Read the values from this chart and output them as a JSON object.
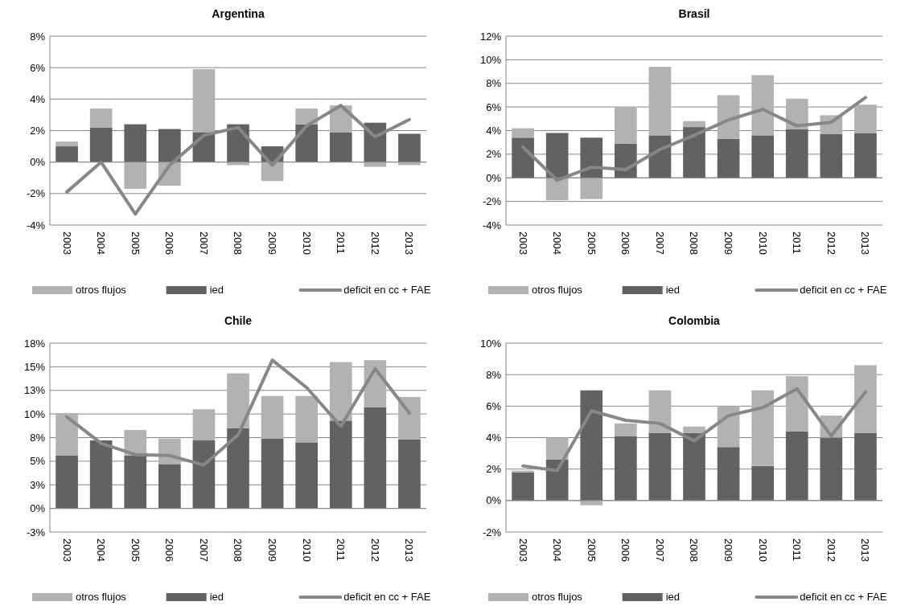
{
  "chart_data": [
    {
      "type": "bar",
      "stacked": true,
      "title": "Argentina",
      "categories": [
        "2003",
        "2004",
        "2005",
        "2006",
        "2007",
        "2008",
        "2009",
        "2010",
        "2011",
        "2012",
        "2013"
      ],
      "ylim": [
        -4,
        8
      ],
      "yticks": [
        {
          "value": -4,
          "label": "-4%"
        },
        {
          "value": -2,
          "label": "-2%"
        },
        {
          "value": 0,
          "label": "0%"
        },
        {
          "value": 2,
          "label": "2%"
        },
        {
          "value": 4,
          "label": "4%"
        },
        {
          "value": 6,
          "label": "6%"
        },
        {
          "value": 8,
          "label": "8%"
        }
      ],
      "grid": "y",
      "legend": "bottom",
      "series": [
        {
          "name": "ied",
          "color": "#626262",
          "values": [
            1.0,
            2.2,
            2.4,
            2.1,
            1.9,
            2.4,
            1.0,
            2.4,
            1.9,
            2.5,
            1.8
          ]
        },
        {
          "name": "otros flujos",
          "color": "#b2b2b2",
          "values": [
            0.3,
            1.2,
            -1.7,
            -1.5,
            4.0,
            -0.2,
            -1.2,
            1.0,
            1.7,
            -0.3,
            -0.2
          ]
        },
        {
          "name": "deficit en cc + FAE",
          "type": "line",
          "color": "#878787",
          "values": [
            -1.9,
            0.0,
            -3.3,
            -0.2,
            1.7,
            2.2,
            -0.2,
            2.3,
            3.6,
            1.6,
            2.7
          ]
        }
      ]
    },
    {
      "type": "bar",
      "stacked": true,
      "title": "Brasil",
      "categories": [
        "2003",
        "2004",
        "2005",
        "2006",
        "2007",
        "2008",
        "2009",
        "2010",
        "2011",
        "2012",
        "2013"
      ],
      "ylim": [
        -4,
        12
      ],
      "yticks": [
        {
          "value": -4,
          "label": "-4%"
        },
        {
          "value": -2,
          "label": "-2%"
        },
        {
          "value": 0,
          "label": "0%"
        },
        {
          "value": 2,
          "label": "2%"
        },
        {
          "value": 4,
          "label": "4%"
        },
        {
          "value": 6,
          "label": "6%"
        },
        {
          "value": 8,
          "label": "8%"
        },
        {
          "value": 10,
          "label": "10%"
        },
        {
          "value": 12,
          "label": "12%"
        }
      ],
      "grid": "y",
      "legend": "bottom",
      "series": [
        {
          "name": "ied",
          "color": "#626262",
          "values": [
            3.4,
            3.8,
            3.4,
            2.9,
            3.6,
            4.3,
            3.3,
            3.6,
            4.1,
            3.7,
            3.8
          ]
        },
        {
          "name": "otros flujos",
          "color": "#b2b2b2",
          "values": [
            0.8,
            -1.9,
            -1.8,
            3.1,
            5.8,
            0.5,
            3.7,
            5.1,
            2.6,
            1.6,
            2.4
          ]
        },
        {
          "name": "deficit en cc + FAE",
          "type": "line",
          "color": "#878787",
          "values": [
            2.6,
            -0.2,
            0.9,
            0.7,
            2.4,
            3.6,
            4.9,
            5.8,
            4.4,
            4.7,
            6.8
          ]
        }
      ]
    },
    {
      "type": "bar",
      "stacked": true,
      "title": "Chile",
      "categories": [
        "2003",
        "2004",
        "2005",
        "2006",
        "2007",
        "2008",
        "2009",
        "2010",
        "2011",
        "2012",
        "2013"
      ],
      "ylim": [
        -2.5,
        17.5
      ],
      "yticks": [
        {
          "value": -2.5,
          "label": "-3%"
        },
        {
          "value": 0,
          "label": "0%"
        },
        {
          "value": 2.5,
          "label": "3%"
        },
        {
          "value": 5,
          "label": "5%"
        },
        {
          "value": 7.5,
          "label": "8%"
        },
        {
          "value": 10,
          "label": "10%"
        },
        {
          "value": 12.5,
          "label": "13%"
        },
        {
          "value": 15,
          "label": "15%"
        },
        {
          "value": 17.5,
          "label": "18%"
        }
      ],
      "grid": "y",
      "legend": "bottom",
      "series": [
        {
          "name": "ied",
          "color": "#626262",
          "values": [
            5.6,
            7.2,
            5.6,
            4.7,
            7.2,
            8.5,
            7.4,
            7.0,
            9.3,
            10.7,
            7.3
          ]
        },
        {
          "name": "otros flujos",
          "color": "#b2b2b2",
          "values": [
            4.5,
            0.0,
            2.7,
            2.7,
            3.3,
            5.8,
            4.5,
            4.9,
            6.2,
            5.0,
            4.5
          ]
        },
        {
          "name": "deficit en cc + FAE",
          "type": "line",
          "color": "#878787",
          "values": [
            9.7,
            6.9,
            5.7,
            5.6,
            4.6,
            7.8,
            15.7,
            12.8,
            8.7,
            14.8,
            10.1
          ]
        }
      ]
    },
    {
      "type": "bar",
      "stacked": true,
      "title": "Colombia",
      "categories": [
        "2003",
        "2004",
        "2005",
        "2006",
        "2007",
        "2008",
        "2009",
        "2010",
        "2011",
        "2012",
        "2013"
      ],
      "ylim": [
        -2,
        10
      ],
      "yticks": [
        {
          "value": -2,
          "label": "-2%"
        },
        {
          "value": 0,
          "label": "0%"
        },
        {
          "value": 2,
          "label": "2%"
        },
        {
          "value": 4,
          "label": "4%"
        },
        {
          "value": 6,
          "label": "6%"
        },
        {
          "value": 8,
          "label": "8%"
        },
        {
          "value": 10,
          "label": "10%"
        }
      ],
      "grid": "y",
      "legend": "bottom",
      "series": [
        {
          "name": "ied",
          "color": "#626262",
          "values": [
            1.8,
            2.6,
            7.0,
            4.1,
            4.3,
            4.3,
            3.4,
            2.2,
            4.4,
            4.0,
            4.3
          ]
        },
        {
          "name": "otros flujos",
          "color": "#b2b2b2",
          "values": [
            0.1,
            1.4,
            -0.3,
            0.8,
            2.7,
            0.4,
            2.6,
            4.8,
            3.5,
            1.4,
            4.3
          ]
        },
        {
          "name": "deficit en cc + FAE",
          "type": "line",
          "color": "#878787",
          "values": [
            2.2,
            1.9,
            5.7,
            5.1,
            4.9,
            3.8,
            5.4,
            5.9,
            7.1,
            4.1,
            6.9
          ]
        }
      ]
    }
  ]
}
